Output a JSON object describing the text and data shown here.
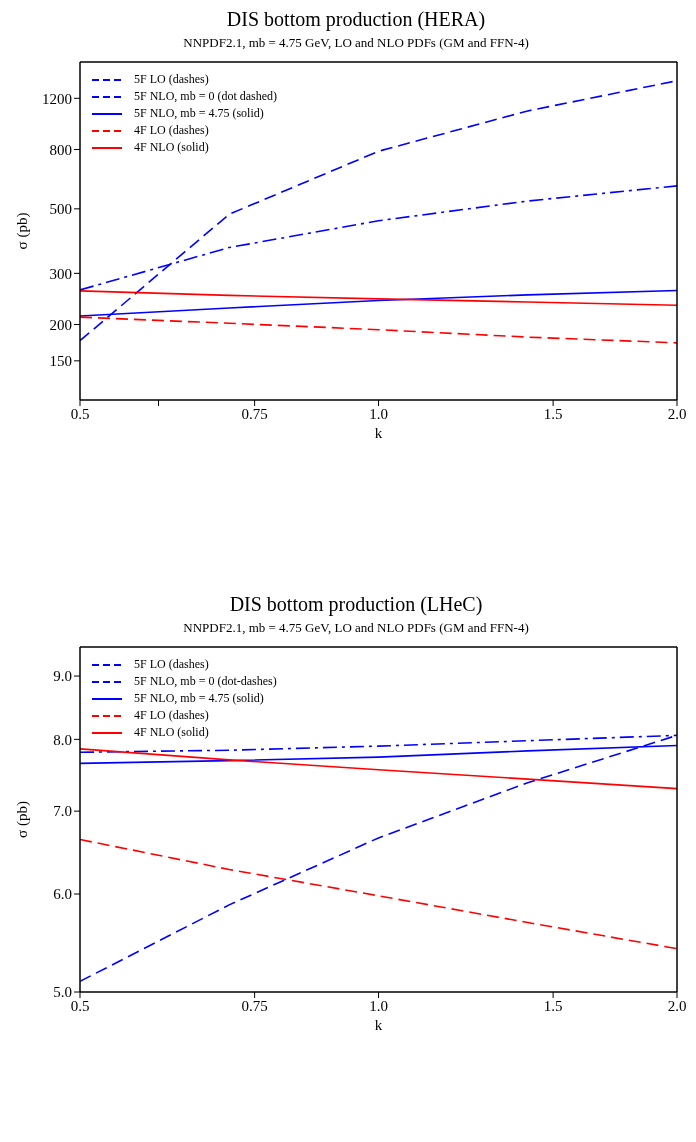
{
  "chart_data": [
    {
      "type": "line",
      "title": "DIS bottom production (HERA)",
      "subtitle": "NNPDF2.1, mb = 4.75 GeV, LO and NLO PDFs (GM and FFN-4)",
      "xlabel": "k",
      "ylabel": "σ  (pb)",
      "log": "xy",
      "legend": "top left",
      "x": [
        0.5,
        0.707,
        1.0,
        1.414,
        2.0
      ],
      "xlim": [
        0.5,
        2.0
      ],
      "xticks": [
        0.5,
        {
          "value": 0.6,
          "label": null
        },
        0.75,
        {
          "value": 1.0,
          "label": "1.0"
        },
        1.5,
        {
          "value": 2.0,
          "label": "2.0"
        }
      ],
      "ylim": [
        110,
        1600
      ],
      "yticks": [
        150,
        200,
        300,
        500,
        800,
        1200
      ],
      "series": [
        {
          "name": "5F LO (dashes)",
          "color": "#0000ff",
          "line_style": "dashed",
          "values": [
            176,
            479,
            789,
            1086,
            1379
          ]
        },
        {
          "name": "5F NLO, mb = 0 (dot dashed)",
          "color": "#0000ff",
          "line_style": "dashdot",
          "values": [
            263,
            368,
            455,
            532,
            600
          ]
        },
        {
          "name": "5F NLO, mb = 4.75 (solid)",
          "color": "#0000ff",
          "line_style": "solid",
          "values": [
            214,
            228,
            242,
            253,
            262
          ]
        },
        {
          "name": "4F LO (dashes)",
          "color": "#ff0000",
          "line_style": "dashed",
          "values": [
            212,
            202,
            192,
            181,
            173
          ]
        },
        {
          "name": "4F NLO (solid)",
          "color": "#ff0000",
          "line_style": "solid",
          "values": [
            261,
            252,
            245,
            239,
            233
          ]
        }
      ]
    },
    {
      "type": "line",
      "title": "DIS bottom production (LHeC)",
      "subtitle": "NNPDF2.1, mb = 4.75 GeV, LO and NLO PDFs (GM and FFN-4)",
      "xlabel": "k",
      "ylabel": "σ (pb)",
      "log": "xy",
      "legend": "top left",
      "x": [
        0.5,
        0.707,
        1.0,
        1.414,
        2.0
      ],
      "xlim": [
        0.5,
        2.0
      ],
      "xticks": [
        0.5,
        0.75,
        {
          "value": 1.0,
          "label": "1.0"
        },
        1.5,
        {
          "value": 2.0,
          "label": "2.0"
        }
      ],
      "ylim": [
        5.0,
        9.5
      ],
      "yticks": [
        {
          "value": 5,
          "label": "5.0"
        },
        {
          "value": 6,
          "label": "6.0"
        },
        {
          "value": 7,
          "label": "7.0"
        },
        {
          "value": 8,
          "label": "8.0"
        },
        {
          "value": 9,
          "label": "9.0"
        }
      ],
      "series": [
        {
          "name": "5F LO (dashes)",
          "color": "#0000ff",
          "line_style": "dashed",
          "values": [
            5.1,
            5.88,
            6.66,
            7.38,
            8.06
          ]
        },
        {
          "name": "5F NLO, mb = 0 (dot-dashes)",
          "color": "#0000ff",
          "line_style": "dashdot",
          "values": [
            7.81,
            7.84,
            7.9,
            7.98,
            8.06
          ]
        },
        {
          "name": "5F NLO, mb = 4.75 (solid)",
          "color": "#0000ff",
          "line_style": "solid",
          "values": [
            7.65,
            7.69,
            7.74,
            7.83,
            7.91
          ]
        },
        {
          "name": "4F LO (dashes)",
          "color": "#ff0000",
          "line_style": "dashed",
          "values": [
            6.64,
            6.28,
            5.98,
            5.69,
            5.42
          ]
        },
        {
          "name": "4F NLO (solid)",
          "color": "#ff0000",
          "line_style": "solid",
          "values": [
            7.86,
            7.7,
            7.56,
            7.43,
            7.3
          ]
        }
      ]
    }
  ]
}
